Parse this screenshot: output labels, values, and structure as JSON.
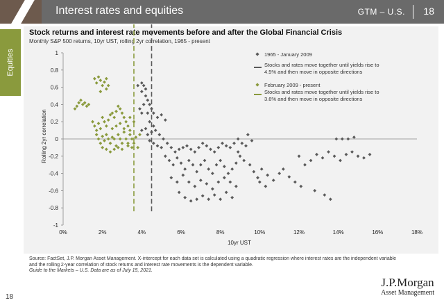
{
  "header": {
    "title": "Interest rates and equities",
    "section": "GTM – U.S.",
    "page_number": "18"
  },
  "side_tab": {
    "label": "Equities"
  },
  "chart": {
    "title": "Stock returns and interest rate movements before and after the Global Financial Crisis",
    "subtitle": "Monthly S&P 500 returns, 10yr UST, rolling 2yr correlation, 1965 - present"
  },
  "chart_data": {
    "type": "scatter",
    "xlabel": "10yr UST",
    "ylabel": "Rolling 2yr correlation",
    "xlim": [
      0,
      18
    ],
    "ylim": [
      -1,
      1
    ],
    "x_ticks": [
      "0%",
      "2%",
      "4%",
      "6%",
      "8%",
      "10%",
      "12%",
      "14%",
      "16%",
      "18%"
    ],
    "y_ticks": [
      "1",
      "0.8",
      "0.6",
      "0.4",
      "0.2",
      "0",
      "-0.2",
      "-0.4",
      "-0.6",
      "-0.8",
      "-1"
    ],
    "grid": false,
    "legend_position": "top-right",
    "series": [
      {
        "name": "1965 - January 2009",
        "color": "#5a5a5a",
        "marker": "diamond",
        "points": [
          [
            3.8,
            0.62
          ],
          [
            4.0,
            0.65
          ],
          [
            4.1,
            0.62
          ],
          [
            4.2,
            0.58
          ],
          [
            4.0,
            0.55
          ],
          [
            4.2,
            0.5
          ],
          [
            4.3,
            0.45
          ],
          [
            4.4,
            0.4
          ],
          [
            4.1,
            0.4
          ],
          [
            3.9,
            0.35
          ],
          [
            4.0,
            0.3
          ],
          [
            4.3,
            0.3
          ],
          [
            4.5,
            0.35
          ],
          [
            4.6,
            0.3
          ],
          [
            4.8,
            0.25
          ],
          [
            5.0,
            0.28
          ],
          [
            5.2,
            0.22
          ],
          [
            4.4,
            0.2
          ],
          [
            4.6,
            0.15
          ],
          [
            4.2,
            0.12
          ],
          [
            4.0,
            0.1
          ],
          [
            4.3,
            0.05
          ],
          [
            4.5,
            0.08
          ],
          [
            4.7,
            0.1
          ],
          [
            4.9,
            0.05
          ],
          [
            5.1,
            0.0
          ],
          [
            4.4,
            -0.02
          ],
          [
            4.6,
            -0.05
          ],
          [
            4.8,
            -0.08
          ],
          [
            5.0,
            -0.1
          ],
          [
            5.3,
            -0.05
          ],
          [
            5.5,
            -0.1
          ],
          [
            5.7,
            -0.15
          ],
          [
            5.9,
            -0.12
          ],
          [
            6.1,
            -0.1
          ],
          [
            6.3,
            -0.08
          ],
          [
            6.5,
            -0.12
          ],
          [
            6.7,
            -0.15
          ],
          [
            6.9,
            -0.1
          ],
          [
            7.1,
            -0.05
          ],
          [
            7.3,
            -0.08
          ],
          [
            7.5,
            -0.12
          ],
          [
            7.7,
            -0.15
          ],
          [
            7.9,
            -0.1
          ],
          [
            8.1,
            -0.05
          ],
          [
            8.3,
            -0.08
          ],
          [
            8.5,
            -0.1
          ],
          [
            8.7,
            -0.05
          ],
          [
            8.9,
            0.0
          ],
          [
            9.1,
            -0.05
          ],
          [
            9.3,
            -0.08
          ],
          [
            5.2,
            -0.2
          ],
          [
            5.4,
            -0.25
          ],
          [
            5.6,
            -0.3
          ],
          [
            5.8,
            -0.22
          ],
          [
            6.0,
            -0.28
          ],
          [
            6.2,
            -0.35
          ],
          [
            6.4,
            -0.25
          ],
          [
            6.6,
            -0.3
          ],
          [
            6.8,
            -0.38
          ],
          [
            7.0,
            -0.3
          ],
          [
            7.2,
            -0.25
          ],
          [
            7.4,
            -0.35
          ],
          [
            7.6,
            -0.4
          ],
          [
            7.8,
            -0.3
          ],
          [
            8.0,
            -0.25
          ],
          [
            8.2,
            -0.32
          ],
          [
            8.4,
            -0.4
          ],
          [
            8.6,
            -0.35
          ],
          [
            8.8,
            -0.28
          ],
          [
            9.0,
            -0.2
          ],
          [
            9.2,
            -0.25
          ],
          [
            5.5,
            -0.45
          ],
          [
            5.8,
            -0.5
          ],
          [
            6.1,
            -0.42
          ],
          [
            6.4,
            -0.5
          ],
          [
            6.7,
            -0.55
          ],
          [
            7.0,
            -0.48
          ],
          [
            7.3,
            -0.52
          ],
          [
            7.6,
            -0.58
          ],
          [
            7.9,
            -0.5
          ],
          [
            8.2,
            -0.45
          ],
          [
            8.5,
            -0.5
          ],
          [
            8.8,
            -0.55
          ],
          [
            5.9,
            -0.62
          ],
          [
            6.2,
            -0.68
          ],
          [
            6.5,
            -0.72
          ],
          [
            6.8,
            -0.7
          ],
          [
            7.1,
            -0.66
          ],
          [
            7.4,
            -0.7
          ],
          [
            7.7,
            -0.65
          ],
          [
            8.0,
            -0.7
          ],
          [
            8.3,
            -0.62
          ],
          [
            8.6,
            -0.68
          ],
          [
            10.1,
            -0.35
          ],
          [
            10.4,
            -0.42
          ],
          [
            10.7,
            -0.48
          ],
          [
            11.0,
            -0.4
          ],
          [
            11.2,
            -0.35
          ],
          [
            11.5,
            -0.44
          ],
          [
            11.8,
            -0.5
          ],
          [
            12.1,
            -0.55
          ],
          [
            10.3,
            -0.55
          ],
          [
            10.0,
            -0.5
          ],
          [
            12.0,
            -0.2
          ],
          [
            12.3,
            -0.3
          ],
          [
            12.6,
            -0.25
          ],
          [
            12.9,
            -0.18
          ],
          [
            13.2,
            -0.22
          ],
          [
            13.5,
            -0.15
          ],
          [
            13.8,
            -0.2
          ],
          [
            14.1,
            -0.25
          ],
          [
            14.4,
            -0.18
          ],
          [
            14.7,
            -0.15
          ],
          [
            15.0,
            -0.2
          ],
          [
            15.3,
            -0.22
          ],
          [
            15.6,
            -0.18
          ],
          [
            13.9,
            0.0
          ],
          [
            14.2,
            0.0
          ],
          [
            14.5,
            0.0
          ],
          [
            14.8,
            0.02
          ],
          [
            13.3,
            -0.65
          ],
          [
            13.6,
            -0.7
          ],
          [
            12.8,
            -0.6
          ],
          [
            9.5,
            -0.3
          ],
          [
            9.7,
            -0.38
          ],
          [
            9.9,
            -0.45
          ],
          [
            9.4,
            0.05
          ],
          [
            9.6,
            -0.02
          ],
          [
            8.9,
            -0.15
          ]
        ]
      },
      {
        "name": "February 2009 - present",
        "color": "#8a9a3d",
        "marker": "diamond",
        "points": [
          [
            0.7,
            0.38
          ],
          [
            0.8,
            0.42
          ],
          [
            0.9,
            0.45
          ],
          [
            1.0,
            0.4
          ],
          [
            1.1,
            0.42
          ],
          [
            1.2,
            0.38
          ],
          [
            1.3,
            0.4
          ],
          [
            0.6,
            0.35
          ],
          [
            1.6,
            0.7
          ],
          [
            1.7,
            0.65
          ],
          [
            1.8,
            0.72
          ],
          [
            1.9,
            0.68
          ],
          [
            2.0,
            0.62
          ],
          [
            2.1,
            0.66
          ],
          [
            2.2,
            0.58
          ],
          [
            2.3,
            0.62
          ],
          [
            1.9,
            0.55
          ],
          [
            2.2,
            0.7
          ],
          [
            1.5,
            0.2
          ],
          [
            1.6,
            0.15
          ],
          [
            1.7,
            0.1
          ],
          [
            1.8,
            0.18
          ],
          [
            1.9,
            0.12
          ],
          [
            2.0,
            0.25
          ],
          [
            2.1,
            0.2
          ],
          [
            2.2,
            0.15
          ],
          [
            2.3,
            0.22
          ],
          [
            2.4,
            0.28
          ],
          [
            2.5,
            0.3
          ],
          [
            2.6,
            0.25
          ],
          [
            2.7,
            0.32
          ],
          [
            2.8,
            0.38
          ],
          [
            2.9,
            0.35
          ],
          [
            3.0,
            0.3
          ],
          [
            3.1,
            0.25
          ],
          [
            3.2,
            0.2
          ],
          [
            3.3,
            0.15
          ],
          [
            3.4,
            0.1
          ],
          [
            1.7,
            0.05
          ],
          [
            1.8,
            0.0
          ],
          [
            1.9,
            -0.05
          ],
          [
            2.0,
            0.03
          ],
          [
            2.1,
            -0.02
          ],
          [
            2.2,
            0.05
          ],
          [
            2.3,
            0.0
          ],
          [
            2.4,
            -0.05
          ],
          [
            2.5,
            0.02
          ],
          [
            2.6,
            0.0
          ],
          [
            2.7,
            -0.08
          ],
          [
            2.8,
            0.05
          ],
          [
            2.9,
            0.0
          ],
          [
            3.0,
            -0.05
          ],
          [
            3.1,
            0.08
          ],
          [
            3.2,
            0.0
          ],
          [
            3.3,
            -0.05
          ],
          [
            3.4,
            0.05
          ],
          [
            3.5,
            0.0
          ],
          [
            3.6,
            -0.05
          ],
          [
            3.7,
            0.02
          ],
          [
            3.8,
            -0.1
          ],
          [
            3.9,
            0.05
          ],
          [
            2.0,
            -0.1
          ],
          [
            2.2,
            -0.12
          ],
          [
            2.4,
            -0.15
          ],
          [
            2.6,
            -0.12
          ],
          [
            2.8,
            -0.1
          ],
          [
            3.0,
            -0.12
          ],
          [
            3.3,
            -0.08
          ],
          [
            3.5,
            -0.1
          ],
          [
            2.5,
            0.12
          ],
          [
            2.7,
            0.15
          ],
          [
            2.9,
            0.18
          ],
          [
            3.1,
            0.12
          ],
          [
            3.4,
            0.25
          ],
          [
            3.6,
            0.2
          ]
        ]
      }
    ],
    "reference_lines": [
      {
        "x": 4.5,
        "color": "#5a5a5a",
        "style": "dashed",
        "legend": "Stocks and rates move together until yields rise to 4.5% and then move in opposite directions"
      },
      {
        "x": 3.6,
        "color": "#8a9a3d",
        "style": "dashed",
        "legend": "Stocks and rates move together until yields rise to 3.6% and then move in opposite directions"
      }
    ]
  },
  "footer": {
    "source": "Source: FactSet, J.P. Morgan Asset Management. X-intercept for each data set is calculated using a quadratic regression where interest rates are the independent variable and the rolling 2-year correlation of stock returns and interest rate movements is the dependent variable.",
    "guide": "Guide to the Markets – U.S. Data are as of July 15, 2021.",
    "page_number": "18",
    "logo_line1": "J.P.Morgan",
    "logo_line2": "Asset Management"
  }
}
